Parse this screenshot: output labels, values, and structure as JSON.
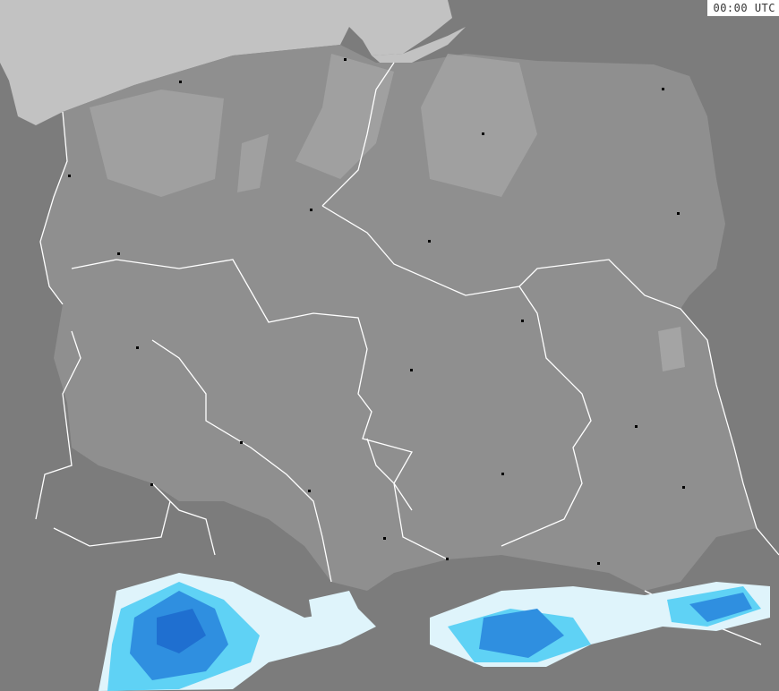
{
  "timestamp": "00:00 UTC",
  "colors": {
    "sea": "#c2c2c2",
    "land": "#7f7f7f",
    "poland": "#909090",
    "border": "#ffffff",
    "precip_light": "#dff4fb",
    "precip_medium": "#5fd2f5",
    "precip_heavy": "#2f8fe0",
    "precip_very_heavy": "#1f6fd0"
  }
}
